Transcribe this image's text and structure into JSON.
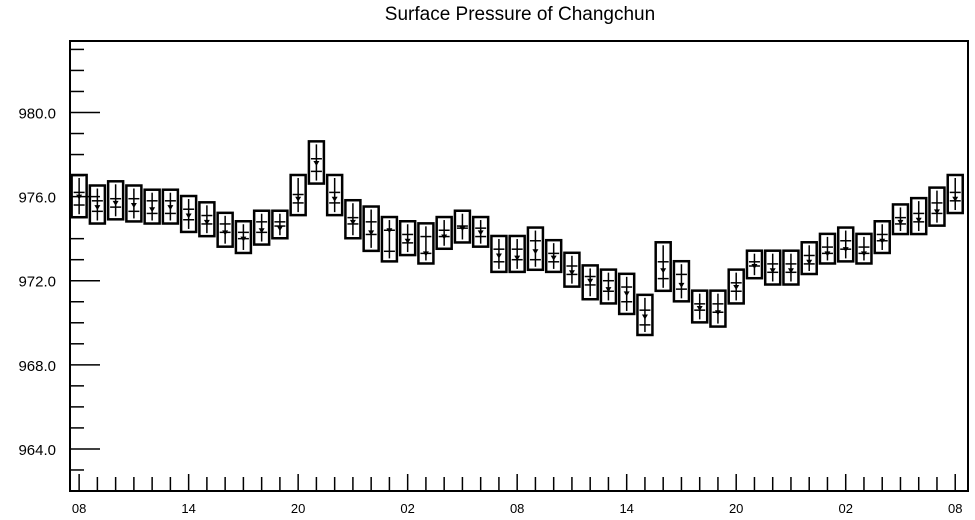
{
  "chart_data": {
    "type": "box",
    "title": "Surface Pressure of Changchun",
    "xlabel": "",
    "ylabel": "",
    "ylim": [
      962.0,
      983.4
    ],
    "y_ticks": [
      "980.0",
      "976.0",
      "972.0",
      "968.0",
      "964.0"
    ],
    "y_tick_values": [
      980,
      976,
      972,
      968,
      964
    ],
    "x_tick_labels": [
      "08",
      "14",
      "20",
      "02",
      "08",
      "14",
      "20",
      "02",
      "08"
    ],
    "x_tick_hours": [
      0,
      6,
      12,
      18,
      24,
      30,
      36,
      42,
      48
    ],
    "x_range_hours": [
      -0.5,
      48.7
    ],
    "grid": false,
    "legend": "none",
    "series": [
      {
        "hours": [
          0,
          1,
          2,
          3,
          4,
          5,
          6,
          7,
          8,
          9,
          10,
          11,
          12,
          13,
          14,
          15,
          16,
          17,
          18,
          19,
          20,
          21,
          22,
          23,
          24,
          25,
          26,
          27,
          28,
          29,
          30,
          31,
          32,
          33,
          34,
          35,
          36,
          37,
          38,
          39,
          40,
          41,
          42,
          43,
          44,
          45,
          46,
          47,
          48
        ],
        "max": [
          976.6,
          976.1,
          976.3,
          976.1,
          975.9,
          975.9,
          975.6,
          975.3,
          974.8,
          974.4,
          974.9,
          974.9,
          976.6,
          978.2,
          976.6,
          975.4,
          975.1,
          974.6,
          974.4,
          974.3,
          974.6,
          974.9,
          974.6,
          973.7,
          973.7,
          974.1,
          973.5,
          972.9,
          972.3,
          972.1,
          971.9,
          970.9,
          973.4,
          972.5,
          971.1,
          971.1,
          972.1,
          973.0,
          973.0,
          973.0,
          973.4,
          973.8,
          974.1,
          973.8,
          974.4,
          975.2,
          975.5,
          976.0,
          976.6
        ],
        "q3": [
          976.2,
          975.8,
          975.9,
          975.9,
          975.8,
          975.8,
          975.4,
          975.1,
          974.7,
          974.3,
          974.8,
          974.8,
          976.1,
          977.8,
          976.2,
          975.0,
          974.8,
          974.4,
          974.2,
          974.1,
          974.4,
          974.6,
          974.5,
          973.5,
          973.5,
          973.9,
          973.3,
          972.7,
          972.2,
          972.0,
          971.7,
          970.6,
          972.9,
          972.3,
          970.9,
          970.9,
          971.9,
          972.9,
          972.8,
          972.8,
          973.2,
          973.6,
          973.9,
          973.6,
          974.2,
          975.0,
          975.2,
          975.7,
          976.2
        ],
        "median": [
          976.0,
          975.5,
          975.7,
          975.6,
          975.4,
          975.5,
          975.1,
          974.8,
          974.3,
          974.0,
          974.4,
          974.5,
          975.9,
          977.6,
          975.9,
          974.8,
          974.3,
          974.4,
          973.9,
          973.3,
          974.1,
          974.5,
          974.3,
          973.2,
          973.1,
          973.4,
          973.1,
          972.4,
          972.0,
          971.6,
          971.4,
          970.3,
          972.5,
          971.8,
          970.7,
          970.5,
          971.7,
          972.7,
          972.5,
          972.5,
          972.9,
          973.3,
          973.5,
          973.3,
          973.9,
          974.8,
          974.9,
          975.3,
          975.9
        ],
        "q1": [
          975.6,
          975.3,
          975.5,
          975.3,
          975.2,
          975.2,
          974.9,
          974.7,
          974.3,
          974.0,
          974.3,
          974.6,
          975.7,
          977.2,
          975.7,
          974.7,
          974.2,
          973.4,
          973.8,
          973.3,
          974.1,
          974.5,
          974.1,
          972.9,
          973.0,
          973.0,
          972.9,
          972.3,
          971.8,
          971.5,
          971.0,
          969.9,
          972.1,
          971.6,
          970.6,
          970.5,
          971.5,
          972.7,
          972.4,
          972.4,
          972.8,
          973.3,
          973.5,
          973.3,
          973.9,
          974.7,
          974.8,
          975.2,
          975.8
        ],
        "min": [
          975.4,
          975.1,
          975.3,
          975.2,
          975.1,
          975.1,
          974.7,
          974.5,
          974.0,
          973.7,
          974.1,
          974.4,
          975.5,
          977.0,
          975.5,
          974.4,
          973.8,
          973.3,
          973.6,
          973.2,
          973.9,
          974.2,
          974.0,
          972.8,
          972.8,
          972.9,
          972.8,
          972.1,
          971.5,
          971.3,
          970.8,
          969.8,
          971.9,
          971.4,
          970.4,
          970.2,
          971.3,
          972.5,
          972.2,
          972.2,
          972.7,
          973.2,
          973.3,
          973.2,
          973.7,
          974.6,
          974.6,
          975.0,
          975.6
        ]
      }
    ]
  }
}
